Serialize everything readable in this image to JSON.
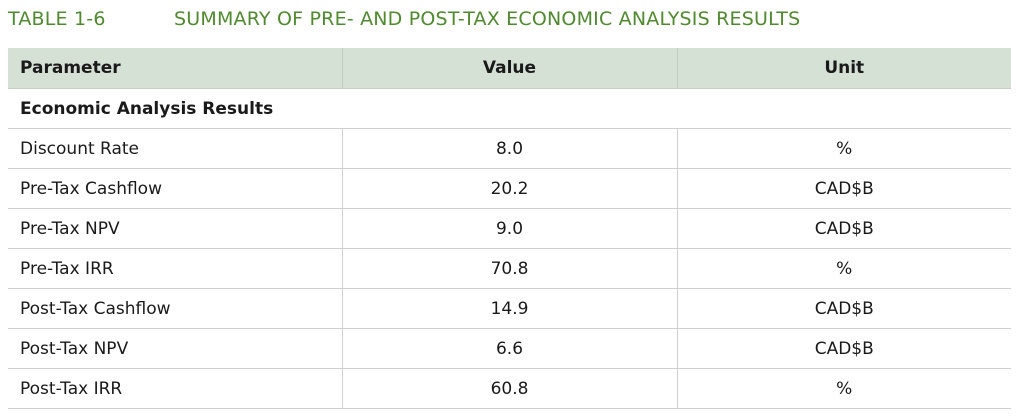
{
  "caption": {
    "number": "TABLE 1-6",
    "title": "SUMMARY OF PRE- AND POST-TAX ECONOMIC ANALYSIS RESULTS"
  },
  "table": {
    "headers": [
      "Parameter",
      "Value",
      "Unit"
    ],
    "section": "Economic Analysis Results",
    "rows": [
      {
        "parameter": "Discount Rate",
        "value": "8.0",
        "unit": "%"
      },
      {
        "parameter": "Pre-Tax Cashflow",
        "value": "20.2",
        "unit": "CAD$B"
      },
      {
        "parameter": "Pre-Tax NPV",
        "value": "9.0",
        "unit": "CAD$B"
      },
      {
        "parameter": "Pre-Tax IRR",
        "value": "70.8",
        "unit": "%"
      },
      {
        "parameter": "Post-Tax Cashflow",
        "value": "14.9",
        "unit": "CAD$B"
      },
      {
        "parameter": "Post-Tax NPV",
        "value": "6.6",
        "unit": "CAD$B"
      },
      {
        "parameter": "Post-Tax IRR",
        "value": "60.8",
        "unit": "%"
      }
    ]
  }
}
